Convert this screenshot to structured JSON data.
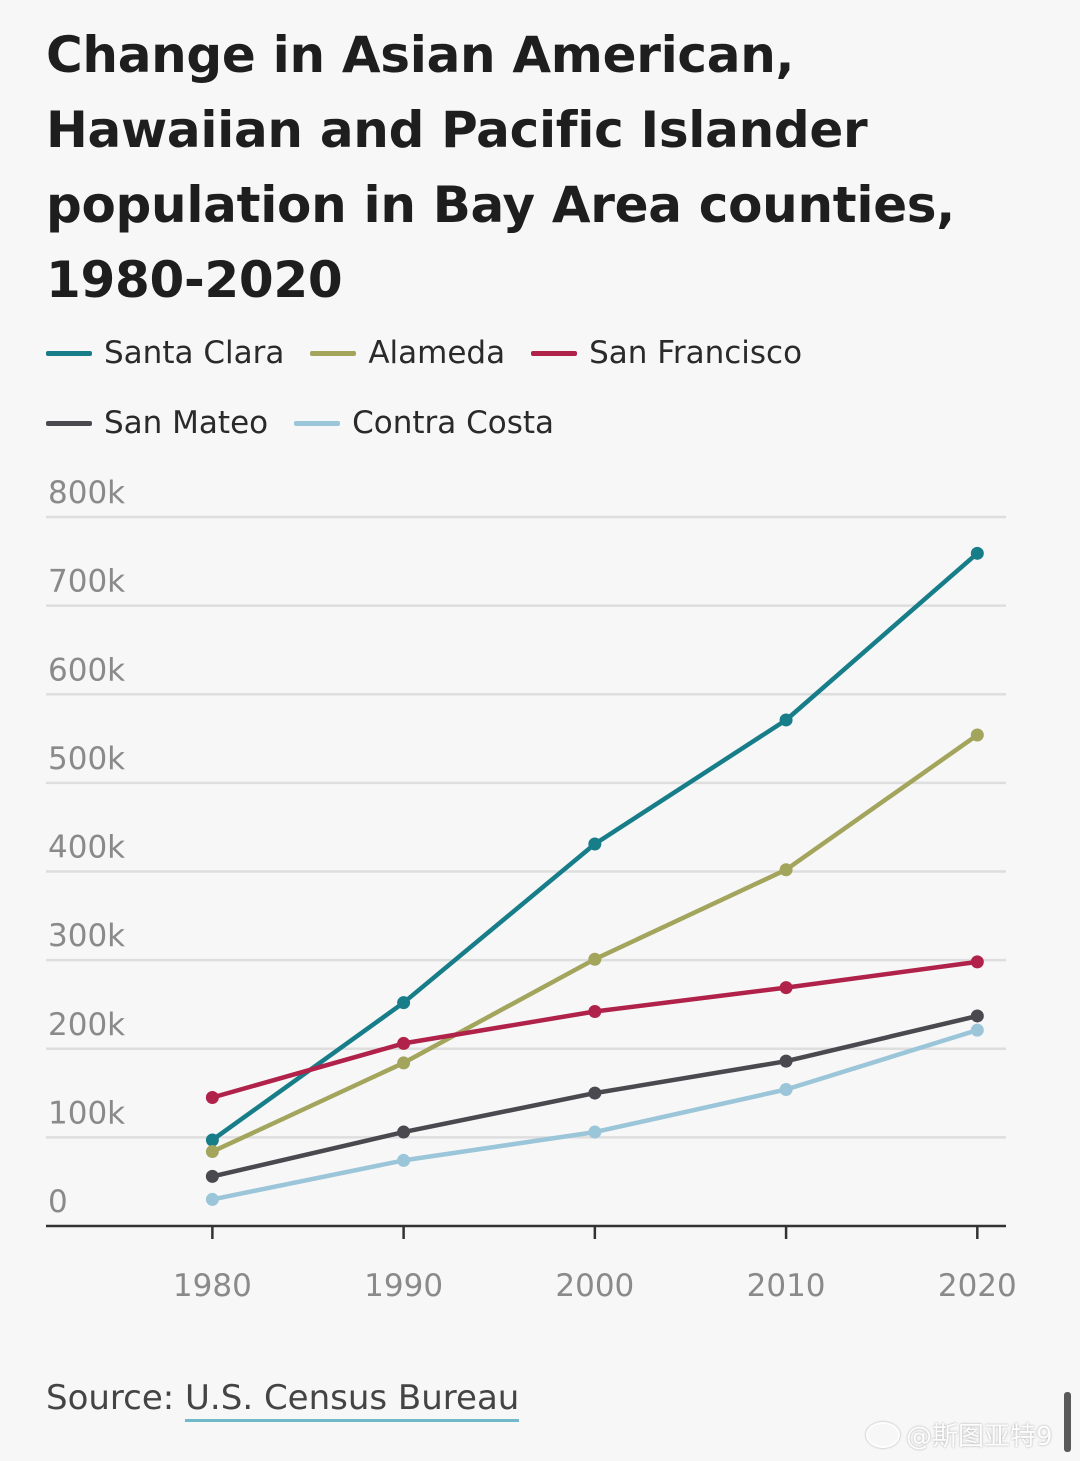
{
  "chart_data": {
    "type": "line",
    "title": "Change in Asian American, Hawaiian and Pacific Islander population in Bay Area counties, 1980-2020",
    "x": [
      1980,
      1990,
      2000,
      2010,
      2020
    ],
    "x_tick_labels": [
      "1980",
      "1990",
      "2000",
      "2010",
      "2020"
    ],
    "y_tick_labels": [
      "0",
      "100k",
      "200k",
      "300k",
      "400k",
      "500k",
      "600k",
      "700k",
      "800k"
    ],
    "y_ticks": [
      0,
      100000,
      200000,
      300000,
      400000,
      500000,
      600000,
      700000,
      800000
    ],
    "ylim": [
      0,
      800000
    ],
    "xlim": [
      1971.3,
      2021.5
    ],
    "grid": true,
    "legend_position": "top-left",
    "series": [
      {
        "name": "Santa Clara",
        "color": "#177e89",
        "values": [
          97000,
          252000,
          431000,
          571000,
          759000
        ]
      },
      {
        "name": "Alameda",
        "color": "#a4a55c",
        "values": [
          84000,
          184000,
          301000,
          402000,
          554000
        ]
      },
      {
        "name": "San Francisco",
        "color": "#b0224a",
        "values": [
          145000,
          206000,
          242000,
          269000,
          298000
        ]
      },
      {
        "name": "San Mateo",
        "color": "#49494f",
        "values": [
          56000,
          106000,
          150000,
          186000,
          237000
        ]
      },
      {
        "name": "Contra Costa",
        "color": "#9bc5d8",
        "values": [
          30000,
          74000,
          106000,
          154000,
          221000
        ]
      }
    ]
  },
  "source": {
    "prefix": "Source: ",
    "link_text": "U.S. Census Bureau"
  },
  "watermark": {
    "text": "@斯图亚特9"
  }
}
